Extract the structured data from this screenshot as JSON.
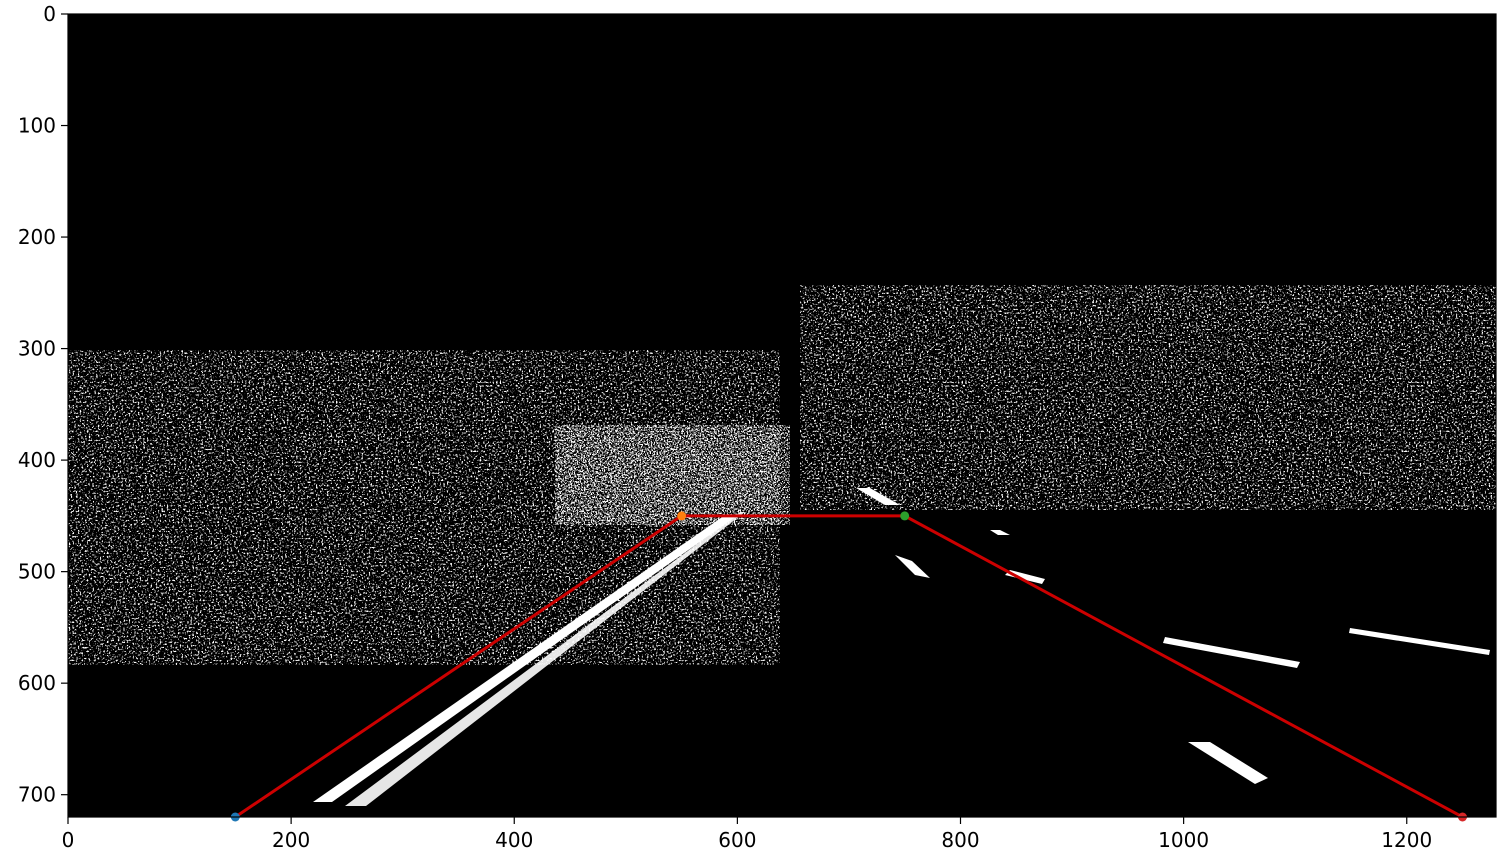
{
  "chart_data": {
    "type": "scatter",
    "title": "",
    "xlabel": "",
    "ylabel": "",
    "xlim": [
      0,
      1280
    ],
    "ylim": [
      720,
      0
    ],
    "x_ticks": [
      0,
      200,
      400,
      600,
      800,
      1000,
      1200
    ],
    "y_ticks": [
      0,
      100,
      200,
      300,
      400,
      500,
      600,
      700
    ],
    "x_tick_labels": [
      "0",
      "200",
      "400",
      "600",
      "800",
      "1000",
      "1200"
    ],
    "y_tick_labels": [
      "0",
      "100",
      "200",
      "300",
      "400",
      "500",
      "600",
      "700"
    ],
    "grid": false,
    "background": "binary edge-detection image of a road (white edges on black)",
    "polygon": {
      "color": "#cc0000",
      "points": [
        [
          150,
          720
        ],
        [
          550,
          450
        ],
        [
          750,
          450
        ],
        [
          1250,
          720
        ]
      ]
    },
    "markers": [
      {
        "x": 150,
        "y": 720,
        "color": "#1f77b4"
      },
      {
        "x": 550,
        "y": 450,
        "color": "#ff7f0e"
      },
      {
        "x": 750,
        "y": 450,
        "color": "#2ca02c"
      },
      {
        "x": 1250,
        "y": 720,
        "color": "#d62728"
      }
    ]
  }
}
